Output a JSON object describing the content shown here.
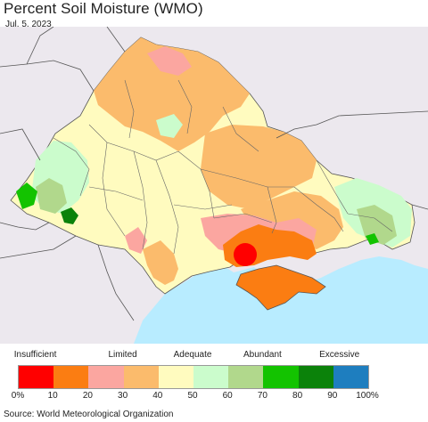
{
  "title": "Percent Soil Moisture (WMO)",
  "date": "Jul. 5, 2023",
  "colors": {
    "sea": "#b8ecff",
    "outside": "#ece8ee",
    "border": "#555555"
  },
  "legend": {
    "categories": [
      {
        "label": "Insufficient",
        "tick_index": 0.5
      },
      {
        "label": "Limited",
        "tick_index": 3
      },
      {
        "label": "Adequate",
        "tick_index": 5
      },
      {
        "label": "Abundant",
        "tick_index": 7
      },
      {
        "label": "Excessive",
        "tick_index": 9.2
      }
    ],
    "bins": [
      {
        "color": "#ff0000"
      },
      {
        "color": "#fb7d12"
      },
      {
        "color": "#fba6a0"
      },
      {
        "color": "#fbbb6c"
      },
      {
        "color": "#fffbbf"
      },
      {
        "color": "#cbfccc"
      },
      {
        "color": "#b1d88c"
      },
      {
        "color": "#13c300"
      },
      {
        "color": "#0b820a"
      },
      {
        "color": "#1e7ebf"
      }
    ],
    "ticks": [
      "0%",
      "10",
      "20",
      "30",
      "40",
      "50",
      "60",
      "70",
      "80",
      "90",
      "100%"
    ]
  },
  "source": "Source: World Meteorological Organization"
}
